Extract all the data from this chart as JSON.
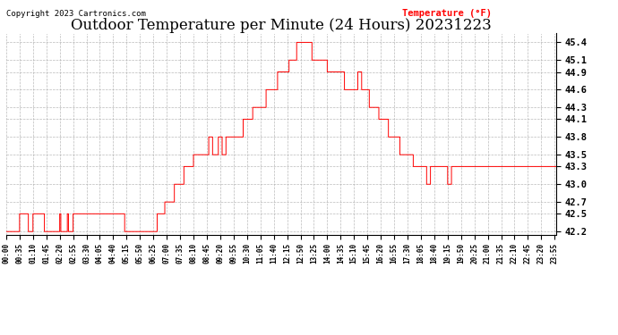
{
  "title": "Outdoor Temperature per Minute (24 Hours) 20231223",
  "copyright_text": "Copyright 2023 Cartronics.com",
  "legend_label": "Temperature (°F)",
  "line_color": "red",
  "background_color": "white",
  "plot_bg_color": "white",
  "grid_color": "#aaaaaa",
  "title_fontsize": 12,
  "y_ticks": [
    42.2,
    42.5,
    42.7,
    43.0,
    43.3,
    43.5,
    43.8,
    44.1,
    44.3,
    44.6,
    44.9,
    45.1,
    45.4
  ],
  "ylim": [
    42.15,
    45.55
  ],
  "xlim_start": 0,
  "xlim_end": 1439,
  "x_tick_interval": 35
}
